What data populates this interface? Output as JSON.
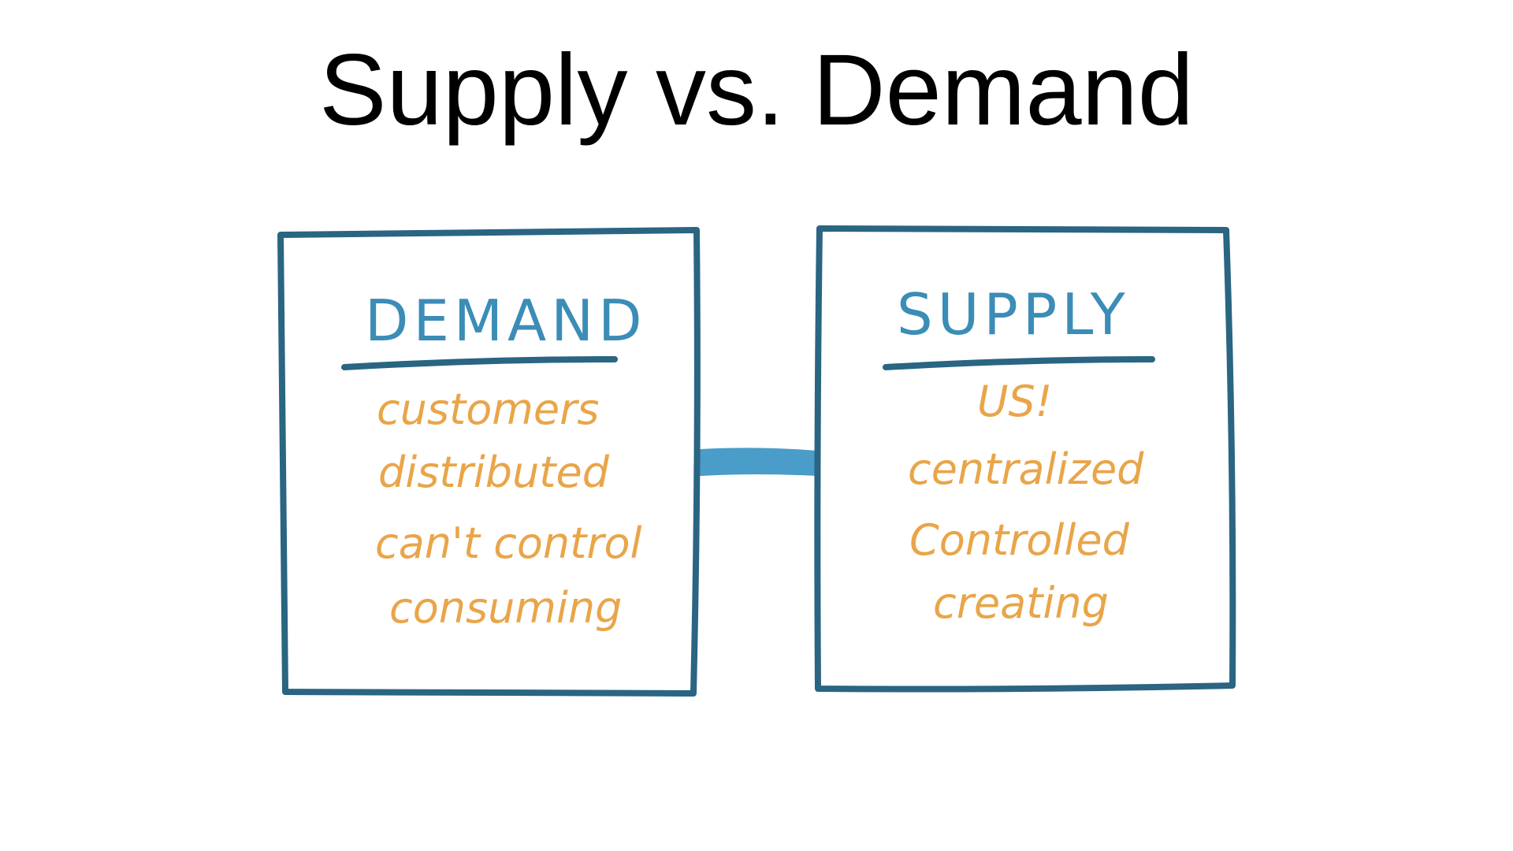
{
  "title": "Supply vs. Demand",
  "colors": {
    "box_outline": "#2a6582",
    "heading": "#3b8db7",
    "connector": "#4a9cc9",
    "items": "#e9a549",
    "title": "#000000"
  },
  "boxes": {
    "demand": {
      "heading": "DEMAND",
      "items": [
        "customers",
        "distributed",
        "can't control",
        "consuming"
      ]
    },
    "supply": {
      "heading": "SUPPLY",
      "items": [
        "US!",
        "centralized",
        "Controlled",
        "creating"
      ]
    }
  }
}
